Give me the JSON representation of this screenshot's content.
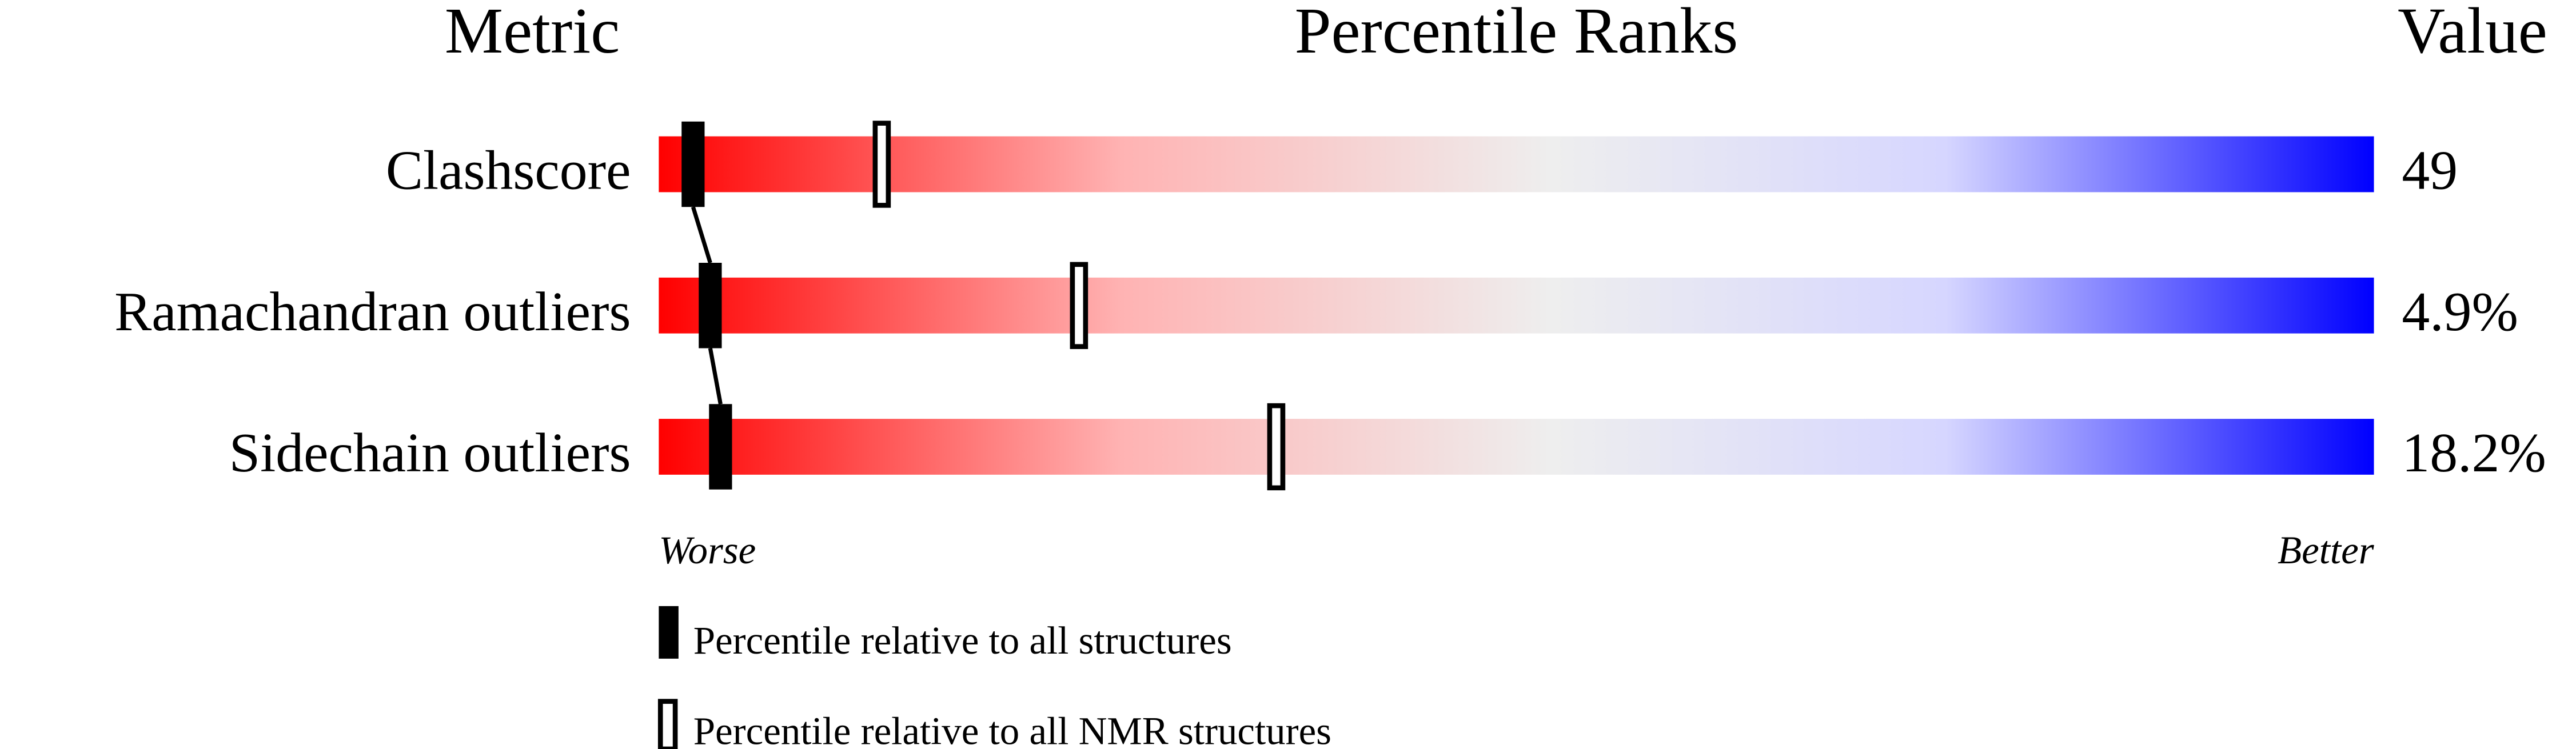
{
  "chart_data": {
    "type": "percentile-slider",
    "headers": {
      "metric": "Metric",
      "ranks": "Percentile Ranks",
      "value": "Value"
    },
    "xlim": [
      0,
      100
    ],
    "axis_labels": {
      "left": "Worse",
      "right": "Better"
    },
    "gradient_colors": [
      "#ff0000",
      "#eeeeee",
      "#0000ff"
    ],
    "metrics": [
      {
        "name": "Clashscore",
        "value": "49",
        "percentile_all": 2,
        "percentile_nmr": 13
      },
      {
        "name": "Ramachandran outliers",
        "value": "4.9%",
        "percentile_all": 3,
        "percentile_nmr": 24.5
      },
      {
        "name": "Sidechain outliers",
        "value": "18.2%",
        "percentile_all": 3.6,
        "percentile_nmr": 36
      }
    ],
    "legend": [
      {
        "marker": "filled",
        "label": "Percentile relative to all structures"
      },
      {
        "marker": "hollow",
        "label": "Percentile relative to all NMR structures"
      }
    ]
  }
}
